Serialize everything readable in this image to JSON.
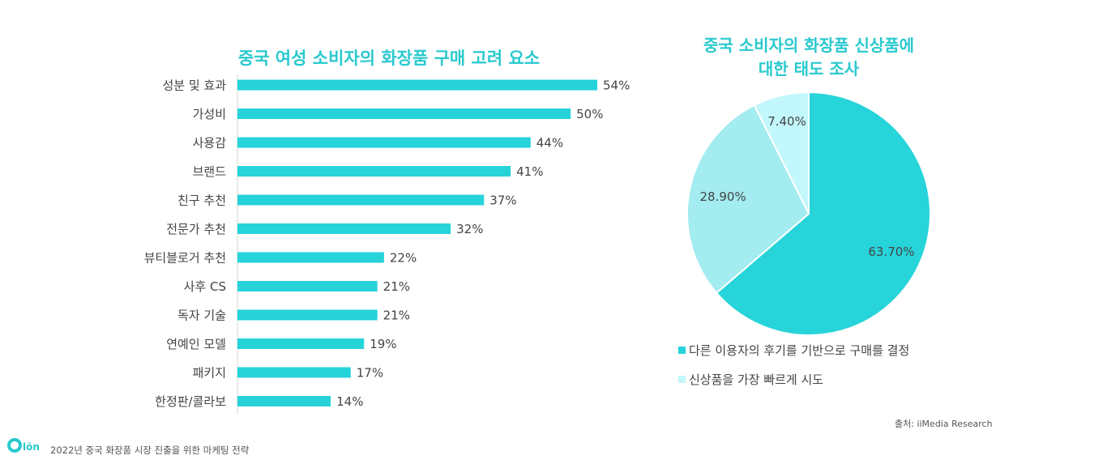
{
  "bar_title": "중국 여성 소비자의 화장품 구매 고려 요소",
  "pie_title_line1": "중국 소비자의 화장품 신상품에",
  "pie_title_line2": "대한 태도 조사",
  "source": "출처: iiMedia Research",
  "footer": "2022년 중국 화장품 시장 진출을 위한 마케팅 전략",
  "logo_text": "Qlon",
  "colors": {
    "title": "#29c9cf",
    "bar": "#26d3d9",
    "pie_main": "#26d4da",
    "pie_second": "#a3ecef",
    "pie_third": "#c2f7fb"
  },
  "chart_data": [
    {
      "type": "bar",
      "orientation": "horizontal",
      "title": "중국 여성 소비자의 화장품 구매 고려 요소",
      "categories": [
        "성분 및 효과",
        "가성비",
        "사용감",
        "브랜드",
        "친구 추천",
        "전문가 추천",
        "뷰티블로거 추천",
        "사후 CS",
        "독자 기술",
        "연예인 모델",
        "패키지",
        "한정판/콜라보"
      ],
      "values": [
        54,
        50,
        44,
        41,
        37,
        32,
        22,
        21,
        21,
        19,
        17,
        14
      ],
      "value_labels": [
        "54%",
        "50%",
        "44%",
        "41%",
        "37%",
        "32%",
        "22%",
        "21%",
        "21%",
        "19%",
        "17%",
        "14%"
      ],
      "xlim": [
        0,
        54
      ]
    },
    {
      "type": "pie",
      "title": "중국 소비자의 화장품 신상품에 대한 태도 조사",
      "slices": [
        {
          "label": "다른 이용자의 후기를 기반으로 구매를 결정",
          "value": 63.7,
          "value_label": "63.70%"
        },
        {
          "label": "",
          "value": 28.9,
          "value_label": "28.90%"
        },
        {
          "label": "신상품을 가장 빠르게 시도",
          "value": 7.4,
          "value_label": "7.40%"
        }
      ],
      "legend": [
        "다른 이용자의 후기를 기반으로 구매를 결정",
        "신상품을 가장 빠르게 시도"
      ],
      "legend_position": "bottom"
    }
  ]
}
